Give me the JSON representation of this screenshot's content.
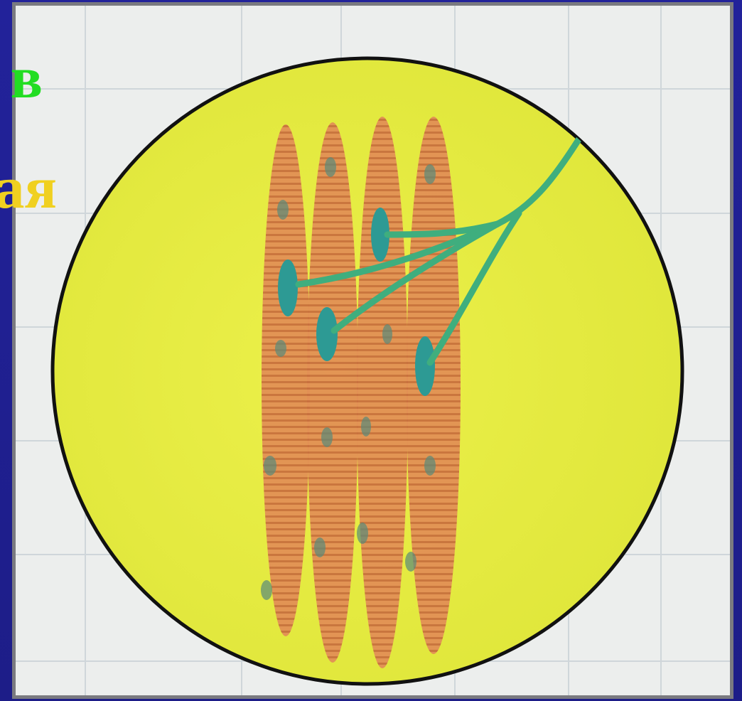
{
  "slide": {
    "texts": [
      "в",
      "ая"
    ]
  }
}
